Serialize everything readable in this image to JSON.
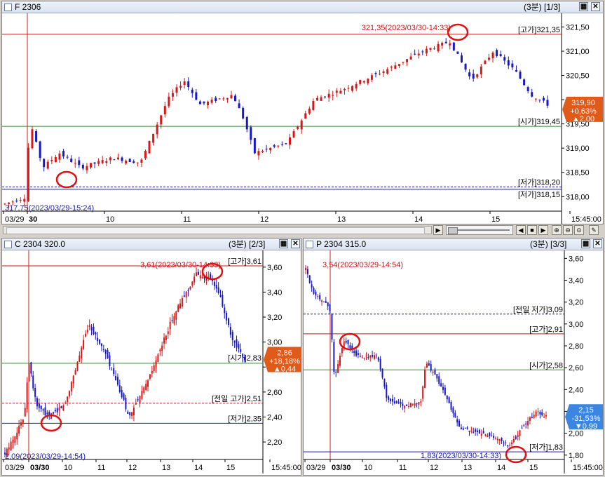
{
  "panels": {
    "f": {
      "title": "F 2306",
      "info": "(3분) [1/3]",
      "high_label": "321,35(2023/03/30-14:33)",
      "low_label": "317,75(2023/03/29-15:24)",
      "lines": [
        {
          "label": "[고가]321,35",
          "value": 321.35
        },
        {
          "label": "[시가]319,45",
          "value": 319.45
        },
        {
          "label": "[저가]318,20",
          "value": 318.2
        },
        {
          "label": "[저가]318,15",
          "value": 318.15
        }
      ],
      "current": {
        "price": "319,90",
        "pct": "+0,63%",
        "chg": "▲2,00"
      },
      "y_ticks": [
        "321,50",
        "321,00",
        "320,50",
        "320,00",
        "319,50",
        "319,00",
        "318,50",
        "318,00"
      ],
      "y_values": [
        321.5,
        321.0,
        320.5,
        320.0,
        319.5,
        319.0,
        318.5,
        318.0
      ],
      "x_ticks": [
        "03/29",
        "30",
        "10",
        "11",
        "12",
        "13",
        "14",
        "15",
        "15:45:00"
      ]
    },
    "c": {
      "title": "C 2304 320.0",
      "info": "(3분) [2/3]",
      "high_label": "3,61(2023/03/30-14:33)",
      "low_label": "2,09(2023/03/29-14:54)",
      "lines": [
        {
          "label": "[고가]3,61",
          "value": 3.61
        },
        {
          "label": "[시가]2,83",
          "value": 2.83
        },
        {
          "label": "[전일 고가]2,51",
          "value": 2.51
        },
        {
          "label": "[저가]2,35",
          "value": 2.35
        }
      ],
      "current": {
        "price": "2,86",
        "pct": "+18,18%",
        "chg": "▲0,44"
      },
      "y_ticks": [
        "3,60",
        "3,40",
        "3,20",
        "3,00",
        "2,80",
        "2,60",
        "2,40",
        "2,20"
      ],
      "y_values": [
        3.6,
        3.4,
        3.2,
        3.0,
        2.8,
        2.6,
        2.4,
        2.2
      ],
      "x_ticks": [
        "03/29",
        "03/30",
        "10",
        "11",
        "12",
        "13",
        "14",
        "15",
        "15:45:00"
      ]
    },
    "p": {
      "title": "P 2304 315.0",
      "info": "(3분) [3/3]",
      "high_label": "3,54(2023/03/29-14:54)",
      "low_label": "1,83(2023/03/30-14:33)",
      "lines": [
        {
          "label": "[전일 저가]3,09",
          "value": 3.09
        },
        {
          "label": "[고가]2,91",
          "value": 2.91
        },
        {
          "label": "[시가]2,58",
          "value": 2.58
        },
        {
          "label": "[저가]1,83",
          "value": 1.83
        }
      ],
      "current": {
        "price": "2,15",
        "pct": "-31,53%",
        "chg": "▼0,99"
      },
      "y_ticks": [
        "3,60",
        "3,40",
        "3,20",
        "3,00",
        "2,80",
        "2,60",
        "2,40",
        "2,20",
        "2,00",
        "1,80"
      ],
      "y_values": [
        3.6,
        3.4,
        3.2,
        3.0,
        2.8,
        2.6,
        2.4,
        2.2,
        2.0,
        1.8
      ],
      "x_ticks": [
        "03/29",
        "03/30",
        "10",
        "11",
        "12",
        "13",
        "14",
        "15",
        "15:45:00"
      ]
    }
  },
  "colors": {
    "up": "#d81818",
    "down": "#1818c8",
    "high_line": "#c81818",
    "open_line": "#2e8b2e",
    "low_line": "#1a1aa0",
    "prev_line": "#d81818",
    "annot_circle": "#e01010",
    "badge_up": "#e05a1a",
    "badge_down": "#3a86e0"
  }
}
